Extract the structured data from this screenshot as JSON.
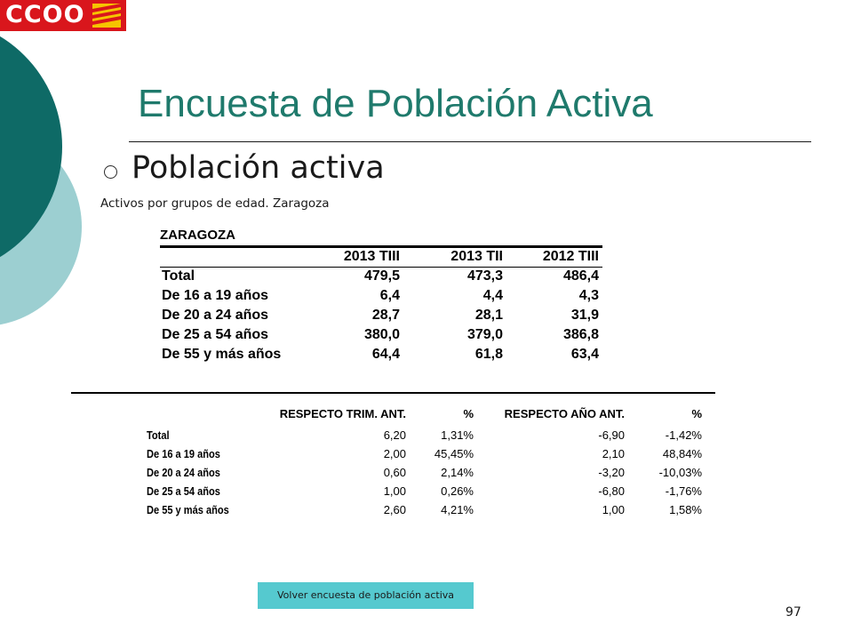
{
  "logo": {
    "text": "CCOO"
  },
  "title": "Encuesta de Población Activa",
  "subtitle": "Población activa",
  "caption": "Activos por grupos de edad. Zaragoza",
  "table1": {
    "title": "ZARAGOZA",
    "columns": [
      "2013 TIII",
      "2013 TII",
      "2012 TIII"
    ],
    "rows": [
      {
        "label": "Total",
        "values": [
          "479,5",
          "473,3",
          "486,4"
        ]
      },
      {
        "label": "De 16 a 19 años",
        "values": [
          "6,4",
          "4,4",
          "4,3"
        ]
      },
      {
        "label": "De 20 a 24 años",
        "values": [
          "28,7",
          "28,1",
          "31,9"
        ]
      },
      {
        "label": "De 25 a 54 años",
        "values": [
          "380,0",
          "379,0",
          "386,8"
        ]
      },
      {
        "label": "De 55 y más años",
        "values": [
          "64,4",
          "61,8",
          "63,4"
        ]
      }
    ]
  },
  "table2": {
    "columns": [
      "RESPECTO TRIM. ANT.",
      "%",
      "RESPECTO AÑO ANT.",
      "%"
    ],
    "rows": [
      {
        "label": "Total",
        "values": [
          "6,20",
          "1,31%",
          "-6,90",
          "-1,42%"
        ]
      },
      {
        "label": "De 16 a 19 años",
        "values": [
          "2,00",
          "45,45%",
          "2,10",
          "48,84%"
        ]
      },
      {
        "label": "De 20 a 24 años",
        "values": [
          "0,60",
          "2,14%",
          "-3,20",
          "-10,03%"
        ]
      },
      {
        "label": "De 25 a 54 años",
        "values": [
          "1,00",
          "0,26%",
          "-6,80",
          "-1,76%"
        ]
      },
      {
        "label": "De 55 y más años",
        "values": [
          "2,60",
          "4,21%",
          "1,00",
          "1,58%"
        ]
      }
    ]
  },
  "nav_button": {
    "label": "Volver encuesta de población  activa"
  },
  "page_number": "97",
  "colors": {
    "title": "#1f7a6c",
    "dark_teal": "#0e6a66",
    "light_teal": "#9ccfd1",
    "button": "#55c9cf",
    "logo_red": "#d9161c"
  },
  "icons": [
    "ccoo-logo",
    "aragon-flag-icon",
    "bullet-circle-icon"
  ]
}
